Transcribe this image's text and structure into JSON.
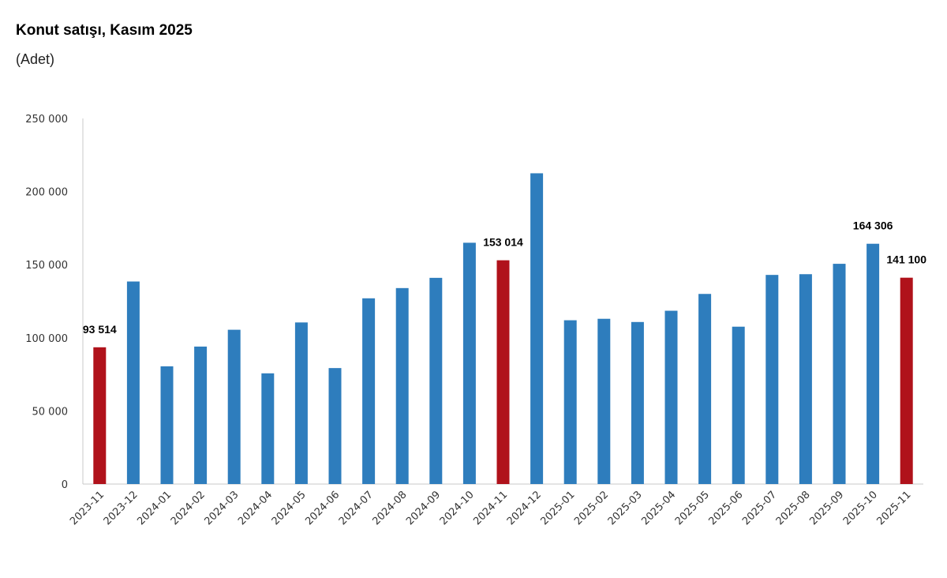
{
  "chart_data": {
    "type": "bar",
    "title": "Konut satışı, Kasım 2025",
    "subtitle": "(Adet)",
    "xlabel": "",
    "ylabel": "",
    "ylim": [
      0,
      250000
    ],
    "yticks": [
      0,
      50000,
      100000,
      150000,
      200000,
      250000
    ],
    "ytick_labels": [
      "0",
      "50 000",
      "100 000",
      "150 000",
      "200 000",
      "250 000"
    ],
    "grid": false,
    "legend": "none",
    "colors": {
      "default": "#2E7DBD",
      "highlight": "#B0121B"
    },
    "categories": [
      "2023-11",
      "2023-12",
      "2024-01",
      "2024-02",
      "2024-03",
      "2024-04",
      "2024-05",
      "2024-06",
      "2024-07",
      "2024-08",
      "2024-09",
      "2024-10",
      "2024-11",
      "2024-12",
      "2025-01",
      "2025-02",
      "2025-03",
      "2025-04",
      "2025-05",
      "2025-06",
      "2025-07",
      "2025-08",
      "2025-09",
      "2025-10",
      "2025-11"
    ],
    "values": [
      93514,
      138500,
      80500,
      94000,
      105500,
      75700,
      110500,
      79300,
      127000,
      134000,
      141000,
      165000,
      153014,
      212500,
      112000,
      113000,
      110800,
      118500,
      130000,
      107600,
      143000,
      143500,
      150600,
      164306,
      141100
    ],
    "highlight": [
      true,
      false,
      false,
      false,
      false,
      false,
      false,
      false,
      false,
      false,
      false,
      false,
      true,
      false,
      false,
      false,
      false,
      false,
      false,
      false,
      false,
      false,
      false,
      false,
      true
    ],
    "data_labels": {
      "0": "93 514",
      "12": "153 014",
      "23": "164 306",
      "24": "141 100"
    }
  }
}
